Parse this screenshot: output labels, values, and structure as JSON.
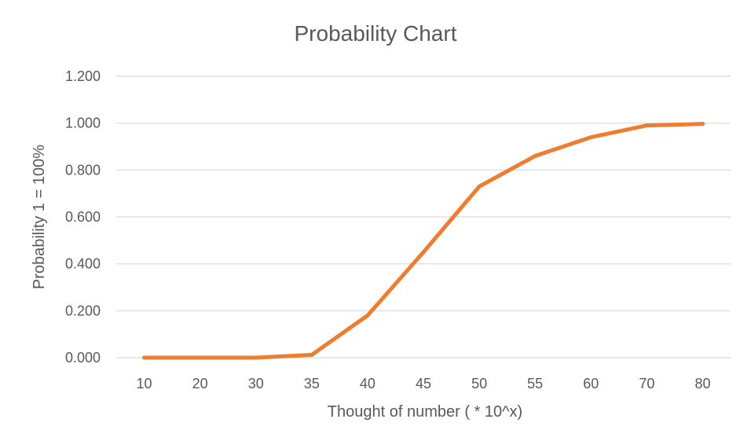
{
  "chart_data": {
    "type": "line",
    "title": "Probability Chart",
    "xlabel": "Thought of number ( * 10^x)",
    "ylabel": "Probability 1 = 100%",
    "categories": [
      "10",
      "20",
      "30",
      "35",
      "40",
      "45",
      "50",
      "55",
      "60",
      "70",
      "80"
    ],
    "series": [
      {
        "values": [
          0.0,
          0.0,
          0.0,
          0.012,
          0.18,
          0.45,
          0.73,
          0.86,
          0.94,
          0.99,
          0.997
        ],
        "color": "#ed7d31"
      }
    ],
    "ylim": [
      0,
      1.2
    ],
    "yticks": [
      "0.000",
      "0.200",
      "0.400",
      "0.600",
      "0.800",
      "1.000",
      "1.200"
    ],
    "grid": true,
    "legend": "none"
  }
}
